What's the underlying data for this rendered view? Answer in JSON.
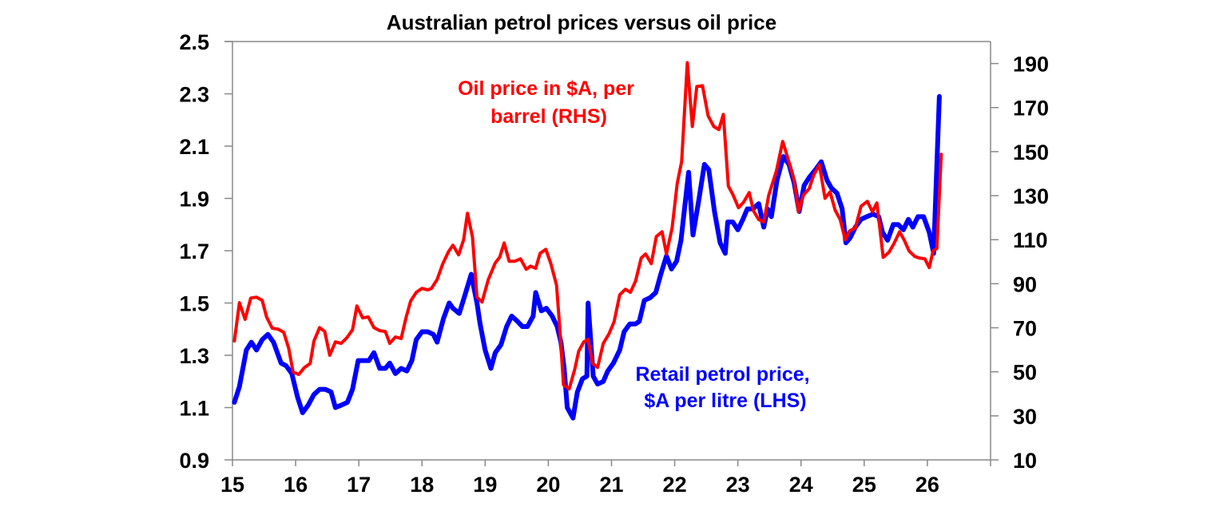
{
  "chart_data": {
    "type": "line",
    "title": "Australian petrol prices versus oil price",
    "xlabel": "",
    "ylabel_left": "",
    "ylabel_right": "",
    "x_ticks": [
      "15",
      "16",
      "17",
      "18",
      "19",
      "20",
      "21",
      "22",
      "23",
      "24",
      "25",
      "26"
    ],
    "xlim": [
      15,
      27
    ],
    "ylim_left": [
      0.9,
      2.5
    ],
    "ylim_right": [
      10,
      200
    ],
    "y_ticks_left": [
      "0.9",
      "1.1",
      "1.3",
      "1.5",
      "1.7",
      "1.9",
      "2.1",
      "2.3",
      "2.5"
    ],
    "y_ticks_right": [
      "10",
      "30",
      "50",
      "70",
      "90",
      "110",
      "130",
      "150",
      "170",
      "190"
    ],
    "grid": false,
    "legend": "none",
    "annotations": {
      "oil": [
        "Oil price in $A, per",
        "barrel (RHS)"
      ],
      "retail": [
        "Retail petrol price,",
        "$A per litre (LHS)"
      ]
    },
    "series": [
      {
        "name": "Retail petrol price, $A per litre (LHS)",
        "axis": "left",
        "color": "#0000ff",
        "points": [
          [
            15.03,
            1.12
          ],
          [
            15.11,
            1.18
          ],
          [
            15.22,
            1.32
          ],
          [
            15.3,
            1.35
          ],
          [
            15.38,
            1.32
          ],
          [
            15.47,
            1.36
          ],
          [
            15.56,
            1.38
          ],
          [
            15.65,
            1.35
          ],
          [
            15.77,
            1.27
          ],
          [
            15.85,
            1.26
          ],
          [
            15.94,
            1.23
          ],
          [
            16.03,
            1.14
          ],
          [
            16.11,
            1.08
          ],
          [
            16.2,
            1.11
          ],
          [
            16.29,
            1.15
          ],
          [
            16.38,
            1.17
          ],
          [
            16.47,
            1.17
          ],
          [
            16.56,
            1.16
          ],
          [
            16.63,
            1.1
          ],
          [
            16.73,
            1.11
          ],
          [
            16.82,
            1.12
          ],
          [
            16.9,
            1.17
          ],
          [
            16.99,
            1.28
          ],
          [
            17.08,
            1.28
          ],
          [
            17.16,
            1.28
          ],
          [
            17.24,
            1.31
          ],
          [
            17.33,
            1.25
          ],
          [
            17.42,
            1.25
          ],
          [
            17.49,
            1.27
          ],
          [
            17.58,
            1.23
          ],
          [
            17.67,
            1.25
          ],
          [
            17.76,
            1.24
          ],
          [
            17.84,
            1.28
          ],
          [
            17.91,
            1.36
          ],
          [
            18.0,
            1.39
          ],
          [
            18.09,
            1.39
          ],
          [
            18.18,
            1.38
          ],
          [
            18.24,
            1.35
          ],
          [
            18.34,
            1.44
          ],
          [
            18.43,
            1.5
          ],
          [
            18.49,
            1.48
          ],
          [
            18.59,
            1.46
          ],
          [
            18.68,
            1.53
          ],
          [
            18.78,
            1.61
          ],
          [
            18.87,
            1.5
          ],
          [
            18.92,
            1.42
          ],
          [
            19.0,
            1.32
          ],
          [
            19.09,
            1.25
          ],
          [
            19.16,
            1.31
          ],
          [
            19.25,
            1.34
          ],
          [
            19.34,
            1.41
          ],
          [
            19.42,
            1.45
          ],
          [
            19.51,
            1.43
          ],
          [
            19.59,
            1.41
          ],
          [
            19.67,
            1.41
          ],
          [
            19.76,
            1.45
          ],
          [
            19.8,
            1.54
          ],
          [
            19.89,
            1.47
          ],
          [
            19.97,
            1.48
          ],
          [
            20.06,
            1.45
          ],
          [
            20.14,
            1.41
          ],
          [
            20.2,
            1.35
          ],
          [
            20.25,
            1.25
          ],
          [
            20.3,
            1.1
          ],
          [
            20.39,
            1.06
          ],
          [
            20.46,
            1.16
          ],
          [
            20.54,
            1.21
          ],
          [
            20.61,
            1.22
          ],
          [
            20.63,
            1.5
          ],
          [
            20.71,
            1.22
          ],
          [
            20.78,
            1.19
          ],
          [
            20.87,
            1.2
          ],
          [
            20.94,
            1.24
          ],
          [
            21.03,
            1.27
          ],
          [
            21.13,
            1.32
          ],
          [
            21.2,
            1.39
          ],
          [
            21.29,
            1.42
          ],
          [
            21.38,
            1.42
          ],
          [
            21.44,
            1.43
          ],
          [
            21.52,
            1.51
          ],
          [
            21.61,
            1.52
          ],
          [
            21.7,
            1.54
          ],
          [
            21.78,
            1.61
          ],
          [
            21.87,
            1.68
          ],
          [
            21.95,
            1.63
          ],
          [
            22.03,
            1.66
          ],
          [
            22.1,
            1.74
          ],
          [
            22.22,
            2.0
          ],
          [
            22.29,
            1.76
          ],
          [
            22.38,
            1.89
          ],
          [
            22.47,
            2.03
          ],
          [
            22.54,
            2.01
          ],
          [
            22.63,
            1.85
          ],
          [
            22.72,
            1.73
          ],
          [
            22.8,
            1.69
          ],
          [
            22.84,
            1.81
          ],
          [
            22.92,
            1.81
          ],
          [
            23.0,
            1.78
          ],
          [
            23.08,
            1.82
          ],
          [
            23.15,
            1.86
          ],
          [
            23.24,
            1.86
          ],
          [
            23.33,
            1.88
          ],
          [
            23.41,
            1.79
          ],
          [
            23.47,
            1.86
          ],
          [
            23.53,
            1.83
          ],
          [
            23.62,
            1.97
          ],
          [
            23.72,
            2.06
          ],
          [
            23.81,
            2.03
          ],
          [
            23.89,
            1.96
          ],
          [
            23.97,
            1.85
          ],
          [
            24.05,
            1.95
          ],
          [
            24.13,
            1.98
          ],
          [
            24.23,
            2.01
          ],
          [
            24.32,
            2.04
          ],
          [
            24.41,
            1.97
          ],
          [
            24.48,
            1.94
          ],
          [
            24.57,
            1.92
          ],
          [
            24.65,
            1.86
          ],
          [
            24.71,
            1.73
          ],
          [
            24.78,
            1.75
          ],
          [
            24.86,
            1.79
          ],
          [
            24.95,
            1.82
          ],
          [
            25.04,
            1.83
          ],
          [
            25.14,
            1.84
          ],
          [
            25.23,
            1.83
          ],
          [
            25.29,
            1.77
          ],
          [
            25.37,
            1.74
          ],
          [
            25.46,
            1.8
          ],
          [
            25.54,
            1.8
          ],
          [
            25.62,
            1.78
          ],
          [
            25.7,
            1.82
          ],
          [
            25.77,
            1.79
          ],
          [
            25.85,
            1.83
          ],
          [
            25.94,
            1.83
          ],
          [
            26.03,
            1.77
          ],
          [
            26.1,
            1.69
          ],
          [
            26.19,
            2.29
          ]
        ]
      },
      {
        "name": "Oil price in $A, per barrel (RHS)",
        "axis": "right",
        "color": "#ff0000",
        "points": [
          [
            15.03,
            64.0
          ],
          [
            15.11,
            81.4
          ],
          [
            15.2,
            73.8
          ],
          [
            15.29,
            83.5
          ],
          [
            15.38,
            83.9
          ],
          [
            15.47,
            82.5
          ],
          [
            15.54,
            74.9
          ],
          [
            15.63,
            69.8
          ],
          [
            15.72,
            69.4
          ],
          [
            15.81,
            68.0
          ],
          [
            15.89,
            60.7
          ],
          [
            15.96,
            49.9
          ],
          [
            16.05,
            48.8
          ],
          [
            16.14,
            52.0
          ],
          [
            16.23,
            53.8
          ],
          [
            16.29,
            64.0
          ],
          [
            16.38,
            70.1
          ],
          [
            16.46,
            68.3
          ],
          [
            16.54,
            57.5
          ],
          [
            16.63,
            63.6
          ],
          [
            16.72,
            62.9
          ],
          [
            16.81,
            65.4
          ],
          [
            16.9,
            69.1
          ],
          [
            16.97,
            79.9
          ],
          [
            17.06,
            74.5
          ],
          [
            17.15,
            74.9
          ],
          [
            17.24,
            70.1
          ],
          [
            17.33,
            68.7
          ],
          [
            17.42,
            68.3
          ],
          [
            17.49,
            62.9
          ],
          [
            17.58,
            65.8
          ],
          [
            17.67,
            65.1
          ],
          [
            17.75,
            74.9
          ],
          [
            17.82,
            82.1
          ],
          [
            17.91,
            86.1
          ],
          [
            18.0,
            87.9
          ],
          [
            18.09,
            87.2
          ],
          [
            18.15,
            87.9
          ],
          [
            18.24,
            91.9
          ],
          [
            18.33,
            99.1
          ],
          [
            18.42,
            104.6
          ],
          [
            18.49,
            107.5
          ],
          [
            18.58,
            103.1
          ],
          [
            18.66,
            110.0
          ],
          [
            18.72,
            122.0
          ],
          [
            18.8,
            111.1
          ],
          [
            18.87,
            83.9
          ],
          [
            18.95,
            81.7
          ],
          [
            19.05,
            91.9
          ],
          [
            19.16,
            99.5
          ],
          [
            19.23,
            102.0
          ],
          [
            19.3,
            108.5
          ],
          [
            19.38,
            100.2
          ],
          [
            19.47,
            100.2
          ],
          [
            19.56,
            101.3
          ],
          [
            19.65,
            96.6
          ],
          [
            19.72,
            98.0
          ],
          [
            19.8,
            97.0
          ],
          [
            19.87,
            103.8
          ],
          [
            19.96,
            105.6
          ],
          [
            20.04,
            99.1
          ],
          [
            20.13,
            89.3
          ],
          [
            20.18,
            70.1
          ],
          [
            20.24,
            44.1
          ],
          [
            20.33,
            42.2
          ],
          [
            20.42,
            51.3
          ],
          [
            20.48,
            59.3
          ],
          [
            20.56,
            63.6
          ],
          [
            20.63,
            64.7
          ],
          [
            20.7,
            53.8
          ],
          [
            20.78,
            52.0
          ],
          [
            20.87,
            62.9
          ],
          [
            20.96,
            67.2
          ],
          [
            21.04,
            72.7
          ],
          [
            21.13,
            85.0
          ],
          [
            21.22,
            87.5
          ],
          [
            21.3,
            86.1
          ],
          [
            21.38,
            91.2
          ],
          [
            21.47,
            101.7
          ],
          [
            21.54,
            103.5
          ],
          [
            21.63,
            99.1
          ],
          [
            21.71,
            111.4
          ],
          [
            21.8,
            113.6
          ],
          [
            21.87,
            103.5
          ],
          [
            21.96,
            115.4
          ],
          [
            22.04,
            135.4
          ],
          [
            22.11,
            145.5
          ],
          [
            22.2,
            190.4
          ],
          [
            22.28,
            161.4
          ],
          [
            22.35,
            179.6
          ],
          [
            22.44,
            179.9
          ],
          [
            22.53,
            166.2
          ],
          [
            22.62,
            161.4
          ],
          [
            22.7,
            160.0
          ],
          [
            22.77,
            166.9
          ],
          [
            22.85,
            134.3
          ],
          [
            22.92,
            130.6
          ],
          [
            23.01,
            124.5
          ],
          [
            23.09,
            127.0
          ],
          [
            23.18,
            131.4
          ],
          [
            23.25,
            123.0
          ],
          [
            23.33,
            119.1
          ],
          [
            23.41,
            118.0
          ],
          [
            23.49,
            130.3
          ],
          [
            23.61,
            141.2
          ],
          [
            23.71,
            154.6
          ],
          [
            23.78,
            148.0
          ],
          [
            23.89,
            137.2
          ],
          [
            23.96,
            122.7
          ],
          [
            24.04,
            130.3
          ],
          [
            24.13,
            133.2
          ],
          [
            24.2,
            139.3
          ],
          [
            24.29,
            144.0
          ],
          [
            24.38,
            128.8
          ],
          [
            24.46,
            131.7
          ],
          [
            24.54,
            123.4
          ],
          [
            24.62,
            119.1
          ],
          [
            24.7,
            110.0
          ],
          [
            24.77,
            114.0
          ],
          [
            24.86,
            115.4
          ],
          [
            24.95,
            125.2
          ],
          [
            25.05,
            127.4
          ],
          [
            25.13,
            122.7
          ],
          [
            25.2,
            126.7
          ],
          [
            25.3,
            102.0
          ],
          [
            25.39,
            104.2
          ],
          [
            25.47,
            108.2
          ],
          [
            25.56,
            113.6
          ],
          [
            25.63,
            110.0
          ],
          [
            25.71,
            104.9
          ],
          [
            25.8,
            102.4
          ],
          [
            25.87,
            101.7
          ],
          [
            25.96,
            101.3
          ],
          [
            26.03,
            97.3
          ],
          [
            26.09,
            104.9
          ],
          [
            26.15,
            106.0
          ],
          [
            26.22,
            148.8
          ]
        ]
      }
    ]
  }
}
